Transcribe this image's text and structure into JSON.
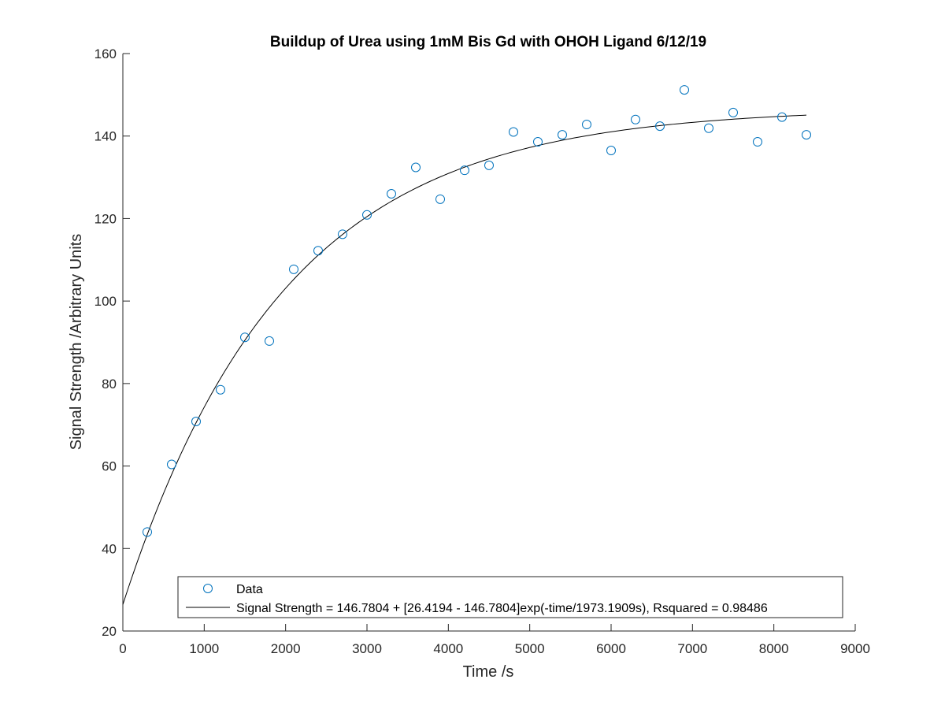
{
  "chart_data": {
    "type": "scatter",
    "title": "Buildup of Urea using 1mM Bis Gd with OHOH Ligand 6/12/19",
    "xlabel": "Time /s",
    "ylabel": "Signal Strength /Arbitrary Units",
    "xlim": [
      0,
      9000
    ],
    "ylim": [
      20,
      160
    ],
    "xticks": [
      0,
      1000,
      2000,
      3000,
      4000,
      5000,
      6000,
      7000,
      8000,
      9000
    ],
    "yticks": [
      20,
      40,
      60,
      80,
      100,
      120,
      140,
      160
    ],
    "grid": false,
    "legend_position": "bottom",
    "series": [
      {
        "name": "Data",
        "kind": "markers",
        "color": "#0072BD",
        "x": [
          300,
          600,
          900,
          1200,
          1500,
          1800,
          2100,
          2400,
          2700,
          3000,
          3300,
          3600,
          3900,
          4200,
          4500,
          4800,
          5100,
          5400,
          5700,
          6000,
          6300,
          6600,
          6900,
          7200,
          7500,
          7800,
          8100,
          8400
        ],
        "y": [
          44.0,
          60.4,
          70.8,
          78.5,
          91.2,
          90.3,
          107.7,
          112.2,
          116.2,
          120.9,
          126.0,
          132.4,
          124.7,
          131.7,
          132.9,
          141.0,
          138.6,
          140.3,
          142.8,
          136.5,
          144.0,
          142.4,
          151.2,
          141.9,
          145.7,
          138.6,
          144.6,
          140.3
        ]
      },
      {
        "name": "Signal Strength = 146.7804 + [26.4194 - 146.7804]exp(-time/1973.1909s), Rsquared = 0.98486",
        "kind": "line",
        "color": "#000000",
        "fit": {
          "a": 146.7804,
          "b": 26.4194,
          "tau": 1973.1909,
          "x_start": 0,
          "x_end": 8400
        }
      }
    ]
  }
}
